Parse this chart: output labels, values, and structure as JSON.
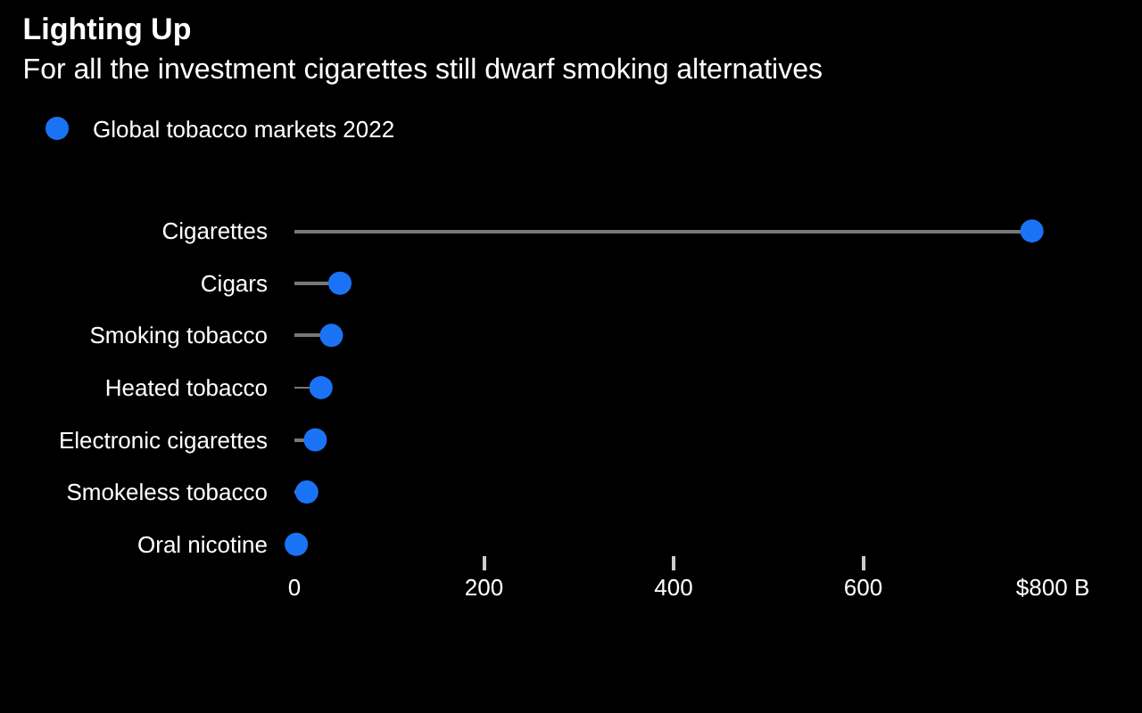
{
  "chart_data": {
    "type": "lollipop",
    "orientation": "horizontal",
    "title": "Lighting Up",
    "subtitle": "For all the investment cigarettes still dwarf smoking alternatives",
    "categories": [
      "Cigarettes",
      "Cigars",
      "Smoking tobacco",
      "Heated tobacco",
      "Electronic cigarettes",
      "Smokeless tobacco",
      "Oral nicotine"
    ],
    "series": [
      {
        "name": "Global tobacco markets 2022",
        "color": "#1a73f5",
        "values": [
          778,
          48,
          39,
          28,
          22,
          13,
          2
        ]
      }
    ],
    "xlim": [
      0,
      800
    ],
    "xticks": [
      0,
      200,
      400,
      600,
      {
        "value": 800,
        "label": "$800 B"
      }
    ],
    "grid": false,
    "legend": "top left",
    "marker": "circle"
  }
}
